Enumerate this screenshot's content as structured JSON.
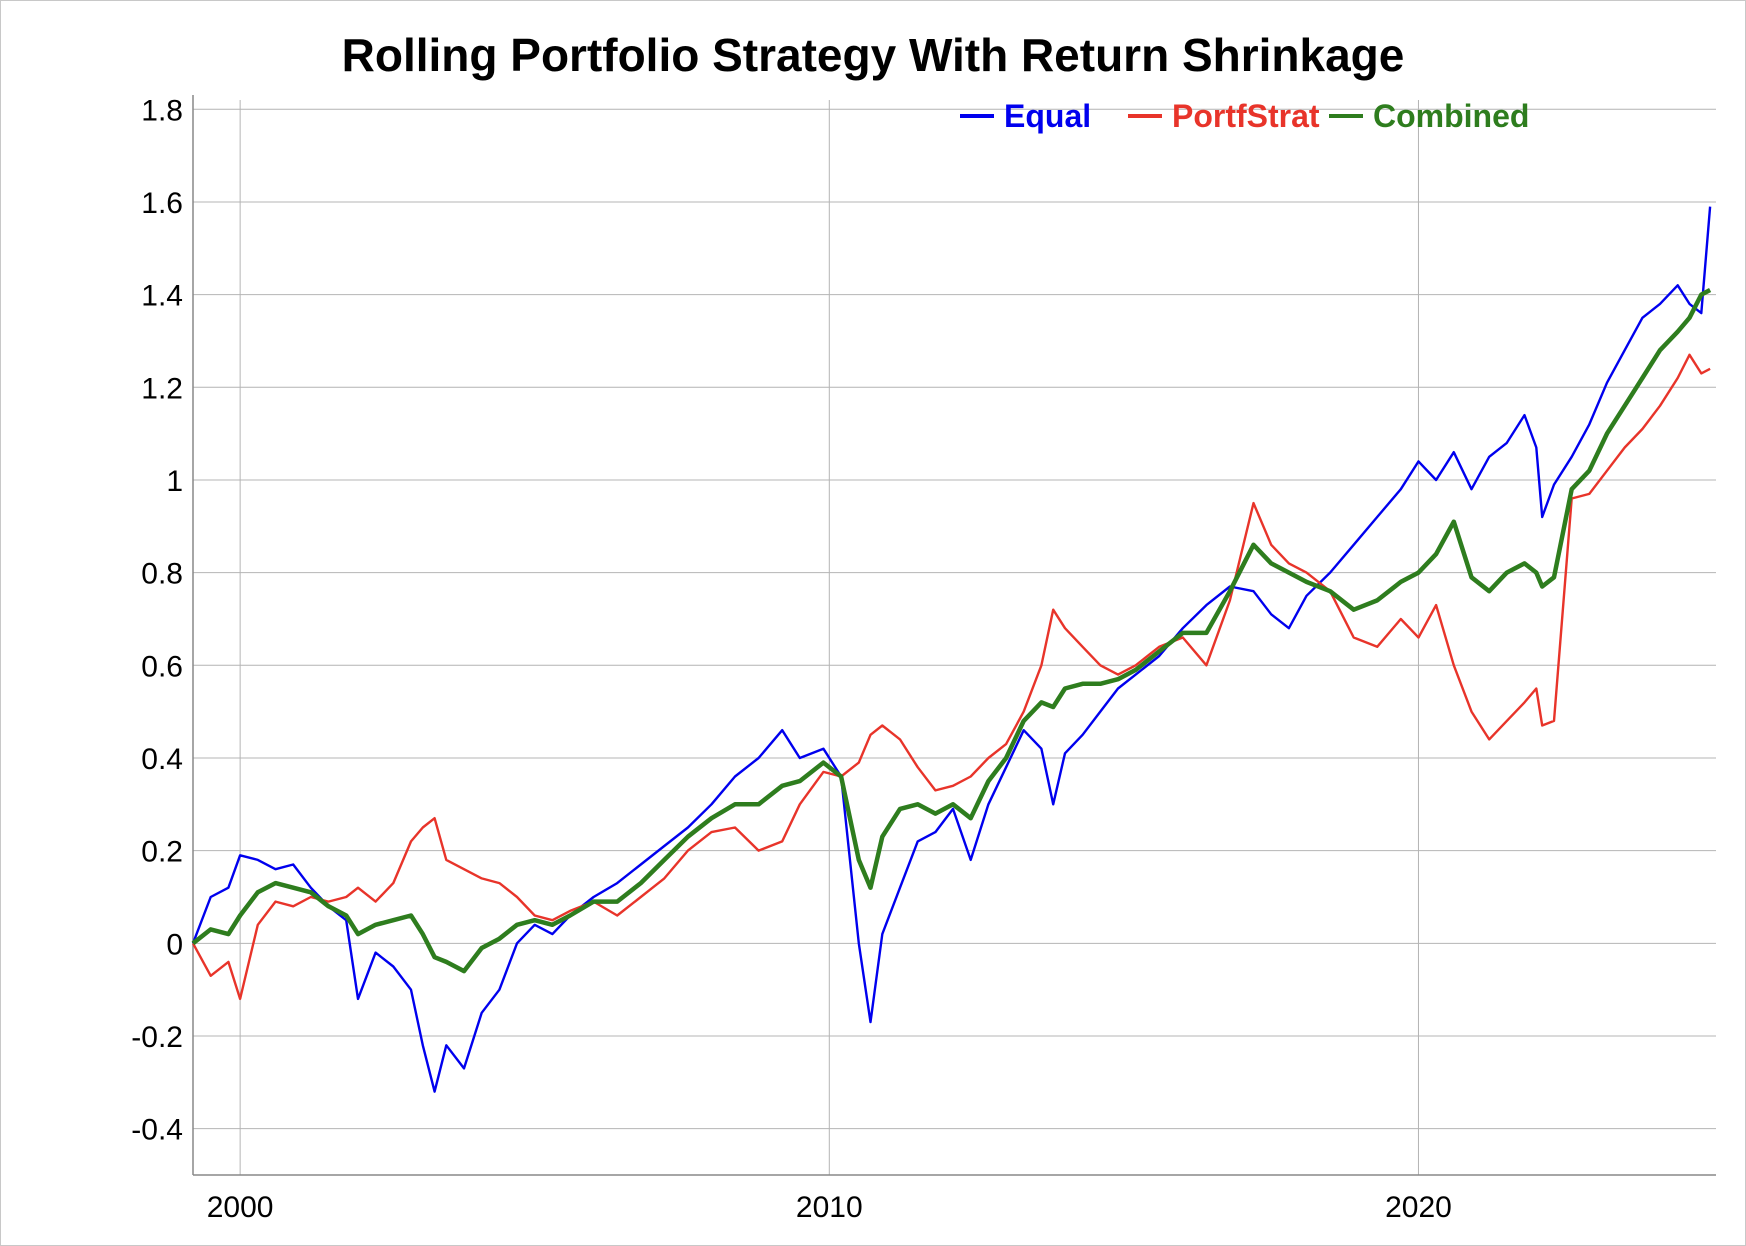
{
  "chart_data": {
    "type": "line",
    "title": "Rolling Portfolio Strategy With Return Shrinkage",
    "xlabel": "",
    "ylabel": "",
    "xlim": [
      1999.2,
      2025.05
    ],
    "ylim": [
      -0.5,
      1.82
    ],
    "x_ticks": [
      2000,
      2010,
      2020
    ],
    "y_ticks": [
      -0.4,
      -0.2,
      0,
      0.2,
      0.4,
      0.6,
      0.8,
      1,
      1.2,
      1.4,
      1.6,
      1.8
    ],
    "x_tick_labels": [
      "2000",
      "2010",
      "2020"
    ],
    "y_tick_labels": [
      "-0.4",
      "-0.2",
      "0",
      "0.2",
      "0.4",
      "0.6",
      "0.8",
      "1",
      "1.2",
      "1.4",
      "1.6",
      "1.8"
    ],
    "grid": true,
    "legend": {
      "placement": "top-right"
    },
    "series": [
      {
        "name": "Equal",
        "color": "#0000ee",
        "points": [
          [
            1999.2,
            0.0
          ],
          [
            1999.5,
            0.1
          ],
          [
            1999.8,
            0.12
          ],
          [
            2000.0,
            0.19
          ],
          [
            2000.3,
            0.18
          ],
          [
            2000.6,
            0.16
          ],
          [
            2000.9,
            0.17
          ],
          [
            2001.2,
            0.12
          ],
          [
            2001.5,
            0.08
          ],
          [
            2001.8,
            0.05
          ],
          [
            2002.0,
            -0.12
          ],
          [
            2002.3,
            -0.02
          ],
          [
            2002.6,
            -0.05
          ],
          [
            2002.9,
            -0.1
          ],
          [
            2003.1,
            -0.22
          ],
          [
            2003.3,
            -0.32
          ],
          [
            2003.5,
            -0.22
          ],
          [
            2003.8,
            -0.27
          ],
          [
            2004.1,
            -0.15
          ],
          [
            2004.4,
            -0.1
          ],
          [
            2004.7,
            0.0
          ],
          [
            2005.0,
            0.04
          ],
          [
            2005.3,
            0.02
          ],
          [
            2005.6,
            0.06
          ],
          [
            2006.0,
            0.1
          ],
          [
            2006.4,
            0.13
          ],
          [
            2006.8,
            0.17
          ],
          [
            2007.2,
            0.21
          ],
          [
            2007.6,
            0.25
          ],
          [
            2008.0,
            0.3
          ],
          [
            2008.4,
            0.36
          ],
          [
            2008.8,
            0.4
          ],
          [
            2009.2,
            0.46
          ],
          [
            2009.5,
            0.4
          ],
          [
            2009.9,
            0.42
          ],
          [
            2010.2,
            0.36
          ],
          [
            2010.5,
            0.0
          ],
          [
            2010.7,
            -0.17
          ],
          [
            2010.9,
            0.02
          ],
          [
            2011.2,
            0.12
          ],
          [
            2011.5,
            0.22
          ],
          [
            2011.8,
            0.24
          ],
          [
            2012.1,
            0.29
          ],
          [
            2012.4,
            0.18
          ],
          [
            2012.7,
            0.3
          ],
          [
            2013.0,
            0.38
          ],
          [
            2013.3,
            0.46
          ],
          [
            2013.6,
            0.42
          ],
          [
            2013.8,
            0.3
          ],
          [
            2014.0,
            0.41
          ],
          [
            2014.3,
            0.45
          ],
          [
            2014.6,
            0.5
          ],
          [
            2014.9,
            0.55
          ],
          [
            2015.2,
            0.58
          ],
          [
            2015.6,
            0.62
          ],
          [
            2016.0,
            0.68
          ],
          [
            2016.4,
            0.73
          ],
          [
            2016.8,
            0.77
          ],
          [
            2017.2,
            0.76
          ],
          [
            2017.5,
            0.71
          ],
          [
            2017.8,
            0.68
          ],
          [
            2018.1,
            0.75
          ],
          [
            2018.5,
            0.8
          ],
          [
            2018.9,
            0.86
          ],
          [
            2019.3,
            0.92
          ],
          [
            2019.7,
            0.98
          ],
          [
            2020.0,
            1.04
          ],
          [
            2020.3,
            1.0
          ],
          [
            2020.6,
            1.06
          ],
          [
            2020.9,
            0.98
          ],
          [
            2021.2,
            1.05
          ],
          [
            2021.5,
            1.08
          ],
          [
            2021.8,
            1.14
          ],
          [
            2022.0,
            1.07
          ],
          [
            2022.1,
            0.92
          ],
          [
            2022.3,
            0.99
          ],
          [
            2022.6,
            1.05
          ],
          [
            2022.9,
            1.12
          ],
          [
            2023.2,
            1.21
          ],
          [
            2023.5,
            1.28
          ],
          [
            2023.8,
            1.35
          ],
          [
            2024.1,
            1.38
          ],
          [
            2024.4,
            1.42
          ],
          [
            2024.6,
            1.38
          ],
          [
            2024.8,
            1.36
          ],
          [
            2024.95,
            1.59
          ]
        ]
      },
      {
        "name": "PortfStrat",
        "color": "#e8342a",
        "points": [
          [
            1999.2,
            0.0
          ],
          [
            1999.5,
            -0.07
          ],
          [
            1999.8,
            -0.04
          ],
          [
            2000.0,
            -0.12
          ],
          [
            2000.3,
            0.04
          ],
          [
            2000.6,
            0.09
          ],
          [
            2000.9,
            0.08
          ],
          [
            2001.2,
            0.1
          ],
          [
            2001.5,
            0.09
          ],
          [
            2001.8,
            0.1
          ],
          [
            2002.0,
            0.12
          ],
          [
            2002.3,
            0.09
          ],
          [
            2002.6,
            0.13
          ],
          [
            2002.9,
            0.22
          ],
          [
            2003.1,
            0.25
          ],
          [
            2003.3,
            0.27
          ],
          [
            2003.5,
            0.18
          ],
          [
            2003.8,
            0.16
          ],
          [
            2004.1,
            0.14
          ],
          [
            2004.4,
            0.13
          ],
          [
            2004.7,
            0.1
          ],
          [
            2005.0,
            0.06
          ],
          [
            2005.3,
            0.05
          ],
          [
            2005.6,
            0.07
          ],
          [
            2006.0,
            0.09
          ],
          [
            2006.4,
            0.06
          ],
          [
            2006.8,
            0.1
          ],
          [
            2007.2,
            0.14
          ],
          [
            2007.6,
            0.2
          ],
          [
            2008.0,
            0.24
          ],
          [
            2008.4,
            0.25
          ],
          [
            2008.8,
            0.2
          ],
          [
            2009.2,
            0.22
          ],
          [
            2009.5,
            0.3
          ],
          [
            2009.9,
            0.37
          ],
          [
            2010.2,
            0.36
          ],
          [
            2010.5,
            0.39
          ],
          [
            2010.7,
            0.45
          ],
          [
            2010.9,
            0.47
          ],
          [
            2011.2,
            0.44
          ],
          [
            2011.5,
            0.38
          ],
          [
            2011.8,
            0.33
          ],
          [
            2012.1,
            0.34
          ],
          [
            2012.4,
            0.36
          ],
          [
            2012.7,
            0.4
          ],
          [
            2013.0,
            0.43
          ],
          [
            2013.3,
            0.5
          ],
          [
            2013.6,
            0.6
          ],
          [
            2013.8,
            0.72
          ],
          [
            2014.0,
            0.68
          ],
          [
            2014.3,
            0.64
          ],
          [
            2014.6,
            0.6
          ],
          [
            2014.9,
            0.58
          ],
          [
            2015.2,
            0.6
          ],
          [
            2015.6,
            0.64
          ],
          [
            2016.0,
            0.66
          ],
          [
            2016.4,
            0.6
          ],
          [
            2016.8,
            0.74
          ],
          [
            2017.2,
            0.95
          ],
          [
            2017.5,
            0.86
          ],
          [
            2017.8,
            0.82
          ],
          [
            2018.1,
            0.8
          ],
          [
            2018.5,
            0.76
          ],
          [
            2018.9,
            0.66
          ],
          [
            2019.3,
            0.64
          ],
          [
            2019.7,
            0.7
          ],
          [
            2020.0,
            0.66
          ],
          [
            2020.3,
            0.73
          ],
          [
            2020.6,
            0.6
          ],
          [
            2020.9,
            0.5
          ],
          [
            2021.2,
            0.44
          ],
          [
            2021.5,
            0.48
          ],
          [
            2021.8,
            0.52
          ],
          [
            2022.0,
            0.55
          ],
          [
            2022.1,
            0.47
          ],
          [
            2022.3,
            0.48
          ],
          [
            2022.6,
            0.96
          ],
          [
            2022.9,
            0.97
          ],
          [
            2023.2,
            1.02
          ],
          [
            2023.5,
            1.07
          ],
          [
            2023.8,
            1.11
          ],
          [
            2024.1,
            1.16
          ],
          [
            2024.4,
            1.22
          ],
          [
            2024.6,
            1.27
          ],
          [
            2024.8,
            1.23
          ],
          [
            2024.95,
            1.24
          ]
        ]
      },
      {
        "name": "Combined",
        "color": "#2e7d1e",
        "points": [
          [
            1999.2,
            0.0
          ],
          [
            1999.5,
            0.03
          ],
          [
            1999.8,
            0.02
          ],
          [
            2000.0,
            0.06
          ],
          [
            2000.3,
            0.11
          ],
          [
            2000.6,
            0.13
          ],
          [
            2000.9,
            0.12
          ],
          [
            2001.2,
            0.11
          ],
          [
            2001.5,
            0.08
          ],
          [
            2001.8,
            0.06
          ],
          [
            2002.0,
            0.02
          ],
          [
            2002.3,
            0.04
          ],
          [
            2002.6,
            0.05
          ],
          [
            2002.9,
            0.06
          ],
          [
            2003.1,
            0.02
          ],
          [
            2003.3,
            -0.03
          ],
          [
            2003.5,
            -0.04
          ],
          [
            2003.8,
            -0.06
          ],
          [
            2004.1,
            -0.01
          ],
          [
            2004.4,
            0.01
          ],
          [
            2004.7,
            0.04
          ],
          [
            2005.0,
            0.05
          ],
          [
            2005.3,
            0.04
          ],
          [
            2005.6,
            0.06
          ],
          [
            2006.0,
            0.09
          ],
          [
            2006.4,
            0.09
          ],
          [
            2006.8,
            0.13
          ],
          [
            2007.2,
            0.18
          ],
          [
            2007.6,
            0.23
          ],
          [
            2008.0,
            0.27
          ],
          [
            2008.4,
            0.3
          ],
          [
            2008.8,
            0.3
          ],
          [
            2009.2,
            0.34
          ],
          [
            2009.5,
            0.35
          ],
          [
            2009.9,
            0.39
          ],
          [
            2010.2,
            0.36
          ],
          [
            2010.5,
            0.18
          ],
          [
            2010.7,
            0.12
          ],
          [
            2010.9,
            0.23
          ],
          [
            2011.2,
            0.29
          ],
          [
            2011.5,
            0.3
          ],
          [
            2011.8,
            0.28
          ],
          [
            2012.1,
            0.3
          ],
          [
            2012.4,
            0.27
          ],
          [
            2012.7,
            0.35
          ],
          [
            2013.0,
            0.4
          ],
          [
            2013.3,
            0.48
          ],
          [
            2013.6,
            0.52
          ],
          [
            2013.8,
            0.51
          ],
          [
            2014.0,
            0.55
          ],
          [
            2014.3,
            0.56
          ],
          [
            2014.6,
            0.56
          ],
          [
            2014.9,
            0.57
          ],
          [
            2015.2,
            0.59
          ],
          [
            2015.6,
            0.63
          ],
          [
            2016.0,
            0.67
          ],
          [
            2016.4,
            0.67
          ],
          [
            2016.8,
            0.76
          ],
          [
            2017.2,
            0.86
          ],
          [
            2017.5,
            0.82
          ],
          [
            2017.8,
            0.8
          ],
          [
            2018.1,
            0.78
          ],
          [
            2018.5,
            0.76
          ],
          [
            2018.9,
            0.72
          ],
          [
            2019.3,
            0.74
          ],
          [
            2019.7,
            0.78
          ],
          [
            2020.0,
            0.8
          ],
          [
            2020.3,
            0.84
          ],
          [
            2020.6,
            0.91
          ],
          [
            2020.9,
            0.79
          ],
          [
            2021.2,
            0.76
          ],
          [
            2021.5,
            0.8
          ],
          [
            2021.8,
            0.82
          ],
          [
            2022.0,
            0.8
          ],
          [
            2022.1,
            0.77
          ],
          [
            2022.3,
            0.79
          ],
          [
            2022.6,
            0.98
          ],
          [
            2022.9,
            1.02
          ],
          [
            2023.2,
            1.1
          ],
          [
            2023.5,
            1.16
          ],
          [
            2023.8,
            1.22
          ],
          [
            2024.1,
            1.28
          ],
          [
            2024.4,
            1.32
          ],
          [
            2024.6,
            1.35
          ],
          [
            2024.8,
            1.4
          ],
          [
            2024.95,
            1.41
          ]
        ]
      }
    ]
  }
}
